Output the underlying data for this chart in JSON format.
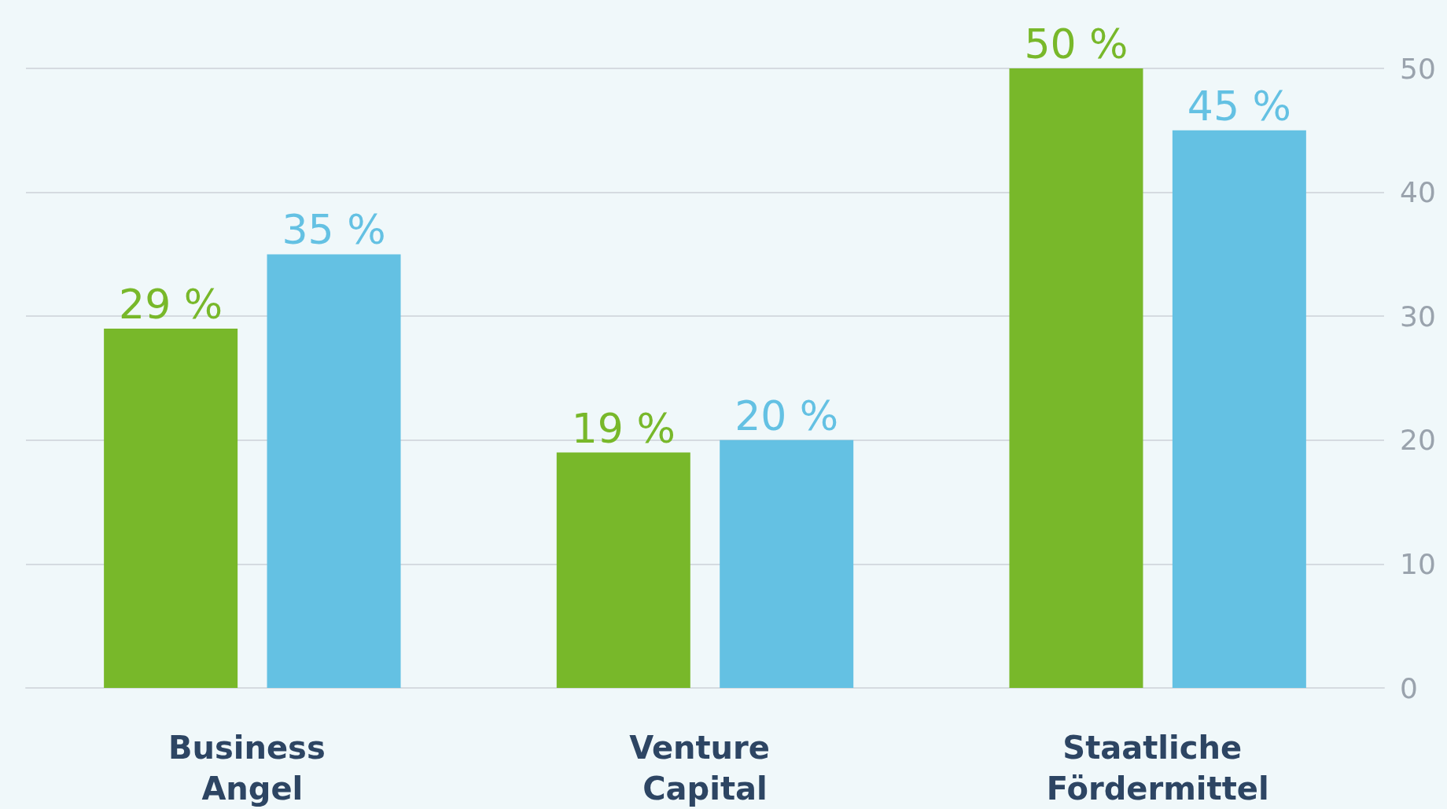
{
  "chart_data": {
    "type": "bar",
    "categories": [
      "Business Angel",
      "Venture Capital",
      "Staatliche Fördermittel"
    ],
    "series": [
      {
        "color": "#78b82a",
        "values": [
          29,
          19,
          50
        ],
        "value_labels": [
          "29 %",
          "19 %",
          "50 %"
        ]
      },
      {
        "color": "#64c1e3",
        "values": [
          35,
          20,
          45
        ],
        "value_labels": [
          "35 %",
          "20 %",
          "45 %"
        ]
      }
    ],
    "ylim": [
      0,
      50
    ],
    "yticks": [
      0,
      10,
      20,
      30,
      40,
      50
    ],
    "grid": "y"
  }
}
